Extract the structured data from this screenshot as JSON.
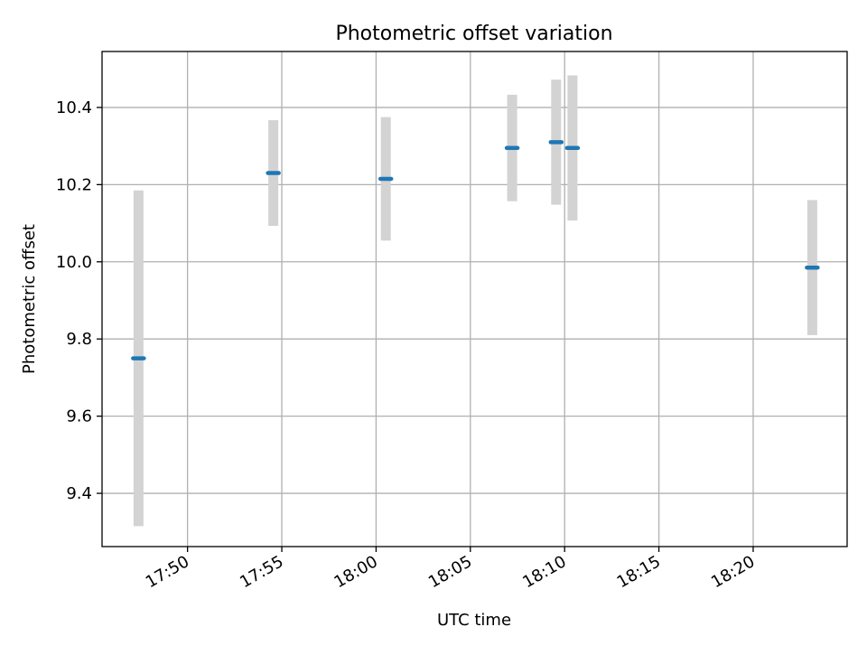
{
  "chart_data": {
    "type": "scatter",
    "title": "Photometric offset variation",
    "xlabel": "UTC time",
    "ylabel": "Photometric offset",
    "xlim": [
      "17:45:28",
      "18:24:59"
    ],
    "ylim": [
      9.262,
      10.545
    ],
    "x_ticks": [
      "17:50",
      "17:55",
      "18:00",
      "18:05",
      "18:10",
      "18:15",
      "18:20"
    ],
    "y_ticks": [
      "9.4",
      "9.6",
      "9.8",
      "10.0",
      "10.2",
      "10.4"
    ],
    "grid": true,
    "points": [
      {
        "x": "17:47:24",
        "y": 9.75,
        "err": 0.435
      },
      {
        "x": "17:54:33",
        "y": 10.23,
        "err": 0.137
      },
      {
        "x": "18:00:31",
        "y": 10.215,
        "err": 0.16
      },
      {
        "x": "18:07:13",
        "y": 10.295,
        "err": 0.138
      },
      {
        "x": "18:09:33",
        "y": 10.31,
        "err": 0.162
      },
      {
        "x": "18:10:25",
        "y": 10.295,
        "err": 0.188
      },
      {
        "x": "18:23:08",
        "y": 9.985,
        "err": 0.175
      }
    ],
    "colors": {
      "point": "#1f77b4",
      "errorbar": "#d3d3d3",
      "grid": "#b0b0b0"
    }
  }
}
